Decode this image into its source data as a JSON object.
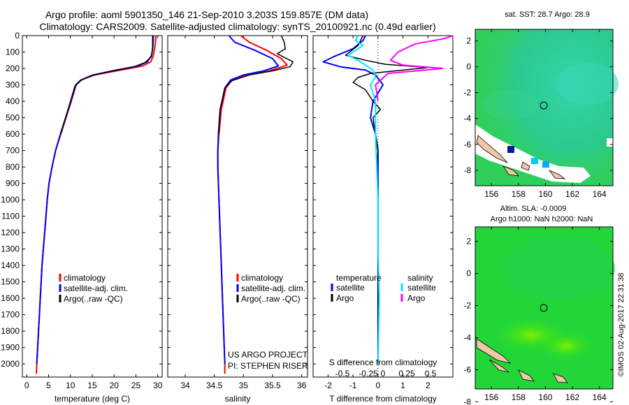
{
  "header": {
    "line1": "Argo profile: aoml 5901350_146 21-Sep-2010 3.203S 159.857E (DM data)",
    "line2": "Climatology: CARS2009. Satellite-adjusted climatology: synTS_20100921.nc (0.49d earlier)"
  },
  "side_stamp": "©IMOS 02-Aug-2017 22:31:38",
  "colors": {
    "climatology": "#ff0000",
    "satellite": "#0000ff",
    "argo": "#000000",
    "sal_satellite": "#00e5ff",
    "sal_argo": "#ff00ff"
  },
  "chart_data": [
    {
      "type": "line",
      "id": "temperature",
      "xlabel": "temperature (deg C)",
      "xlim": [
        -1,
        31
      ],
      "ylim": [
        0,
        2080
      ],
      "xticks": [
        0,
        5,
        10,
        15,
        20,
        25,
        30
      ],
      "yticks": [
        0,
        100,
        200,
        300,
        400,
        500,
        600,
        700,
        800,
        900,
        1000,
        1100,
        1200,
        1300,
        1400,
        1500,
        1600,
        1700,
        1800,
        1900,
        2000
      ],
      "legend": [
        "climatology",
        "satellite-adj. clim.",
        "Argo(..raw -QC)"
      ],
      "series": [
        {
          "name": "climatology",
          "color": "#ff0000",
          "width": 2,
          "points": [
            [
              29.6,
              0
            ],
            [
              29.4,
              60
            ],
            [
              29.0,
              120
            ],
            [
              28.4,
              160
            ],
            [
              26.5,
              185
            ],
            [
              21.5,
              210
            ],
            [
              15.5,
              240
            ],
            [
              12.5,
              270
            ],
            [
              11.3,
              300
            ],
            [
              10.2,
              400
            ],
            [
              9.0,
              500
            ],
            [
              7.8,
              600
            ],
            [
              6.6,
              700
            ],
            [
              5.8,
              800
            ],
            [
              5.1,
              900
            ],
            [
              4.7,
              1000
            ],
            [
              4.4,
              1100
            ],
            [
              4.1,
              1200
            ],
            [
              3.8,
              1300
            ],
            [
              3.5,
              1400
            ],
            [
              3.3,
              1500
            ],
            [
              3.1,
              1600
            ],
            [
              2.9,
              1700
            ],
            [
              2.7,
              1800
            ],
            [
              2.5,
              1900
            ],
            [
              2.3,
              2000
            ],
            [
              2.2,
              2060
            ]
          ]
        },
        {
          "name": "satellite",
          "color": "#0000ff",
          "width": 2,
          "points": [
            [
              29.0,
              0
            ],
            [
              28.9,
              60
            ],
            [
              28.6,
              120
            ],
            [
              27.6,
              160
            ],
            [
              25.5,
              185
            ],
            [
              20.5,
              210
            ],
            [
              15.2,
              240
            ],
            [
              12.4,
              270
            ],
            [
              11.2,
              300
            ],
            [
              10.1,
              400
            ],
            [
              8.9,
              500
            ],
            [
              7.7,
              600
            ],
            [
              6.6,
              700
            ],
            [
              5.8,
              800
            ],
            [
              5.1,
              900
            ],
            [
              4.7,
              1000
            ],
            [
              4.4,
              1100
            ],
            [
              4.1,
              1200
            ],
            [
              3.8,
              1300
            ],
            [
              3.5,
              1400
            ],
            [
              3.3,
              1500
            ],
            [
              3.1,
              1600
            ],
            [
              2.9,
              1700
            ],
            [
              2.7,
              1800
            ],
            [
              2.5,
              1900
            ],
            [
              2.3,
              2000
            ]
          ]
        },
        {
          "name": "argo",
          "color": "#000000",
          "width": 1.5,
          "points": [
            [
              28.8,
              0
            ],
            [
              28.8,
              80
            ],
            [
              28.5,
              130
            ],
            [
              27.0,
              165
            ],
            [
              24.5,
              190
            ],
            [
              19.5,
              215
            ],
            [
              14.5,
              245
            ],
            [
              12.3,
              275
            ],
            [
              11.0,
              310
            ],
            [
              10.0,
              400
            ],
            [
              8.9,
              500
            ],
            [
              7.8,
              600
            ]
          ]
        }
      ]
    },
    {
      "type": "line",
      "id": "salinity",
      "xlabel": "salinity",
      "xlim": [
        33.7,
        36.1
      ],
      "ylim": [
        0,
        2080
      ],
      "xticks": [
        34,
        34.5,
        35,
        35.5,
        36
      ],
      "xticklabels": [
        "34",
        "34.5",
        "35",
        "35.5",
        "36"
      ],
      "legend": [
        "climatology",
        "satellite-adj. clim.",
        "Argo(..raw -QC)"
      ],
      "annotation": [
        "US ARGO PROJECT",
        "PI: STEPHEN RISER"
      ],
      "series": [
        {
          "name": "climatology",
          "color": "#ff0000",
          "width": 2,
          "points": [
            [
              34.95,
              0
            ],
            [
              35.1,
              40
            ],
            [
              35.4,
              90
            ],
            [
              35.65,
              140
            ],
            [
              35.75,
              180
            ],
            [
              35.45,
              215
            ],
            [
              35.05,
              240
            ],
            [
              34.8,
              270
            ],
            [
              34.7,
              320
            ],
            [
              34.62,
              450
            ],
            [
              34.58,
              600
            ],
            [
              34.56,
              700
            ],
            [
              34.56,
              800
            ],
            [
              34.57,
              900
            ],
            [
              34.58,
              1000
            ],
            [
              34.6,
              1200
            ],
            [
              34.62,
              1400
            ],
            [
              34.64,
              1600
            ],
            [
              34.66,
              1800
            ],
            [
              34.68,
              2000
            ],
            [
              34.68,
              2060
            ]
          ]
        },
        {
          "name": "satellite",
          "color": "#0000ff",
          "width": 2,
          "points": [
            [
              34.75,
              0
            ],
            [
              34.85,
              40
            ],
            [
              35.2,
              90
            ],
            [
              35.5,
              140
            ],
            [
              35.6,
              185
            ],
            [
              35.35,
              215
            ],
            [
              35.0,
              240
            ],
            [
              34.78,
              270
            ],
            [
              34.68,
              320
            ],
            [
              34.6,
              450
            ],
            [
              34.57,
              600
            ],
            [
              34.56,
              700
            ],
            [
              34.56,
              800
            ],
            [
              34.57,
              900
            ],
            [
              34.58,
              1000
            ],
            [
              34.6,
              1200
            ],
            [
              34.62,
              1400
            ],
            [
              34.64,
              1600
            ],
            [
              34.66,
              1800
            ],
            [
              34.68,
              2000
            ]
          ]
        },
        {
          "name": "argo",
          "color": "#000000",
          "width": 1.5,
          "points": [
            [
              35.65,
              0
            ],
            [
              35.7,
              40
            ],
            [
              35.72,
              80
            ],
            [
              35.58,
              110
            ],
            [
              35.85,
              160
            ],
            [
              35.8,
              190
            ],
            [
              35.5,
              215
            ],
            [
              35.1,
              240
            ],
            [
              34.8,
              275
            ],
            [
              34.68,
              320
            ],
            [
              34.6,
              450
            ],
            [
              34.57,
              600
            ]
          ]
        }
      ]
    },
    {
      "type": "line",
      "id": "difference",
      "xlabel": "T difference from climatology",
      "xlabel_secondary": "S difference from climatology",
      "xlim": [
        -2.6,
        3.0
      ],
      "ylim": [
        0,
        2080
      ],
      "xticks": [
        -2,
        -1,
        0,
        1,
        2
      ],
      "secondary_ticks": [
        "-0.5",
        "-0.25",
        "0",
        "0.25",
        "0.5"
      ],
      "legend_headers": [
        "temperature",
        "salinity"
      ],
      "legend_left": [
        "satellite",
        "Argo"
      ],
      "legend_right": [
        "satellite",
        "Argo"
      ],
      "series": [
        {
          "name": "T satellite",
          "color": "#0000ff",
          "width": 2,
          "points": [
            [
              -0.5,
              0
            ],
            [
              -0.6,
              30
            ],
            [
              -1.0,
              80
            ],
            [
              -1.8,
              130
            ],
            [
              -2.2,
              160
            ],
            [
              -1.5,
              190
            ],
            [
              -0.5,
              210
            ],
            [
              -0.1,
              240
            ],
            [
              0.2,
              300
            ],
            [
              -0.2,
              400
            ],
            [
              -0.3,
              500
            ],
            [
              -0.1,
              600
            ],
            [
              0.0,
              700
            ],
            [
              0.0,
              900
            ],
            [
              0.0,
              1200
            ],
            [
              0.0,
              2000
            ]
          ]
        },
        {
          "name": "T argo",
          "color": "#000000",
          "width": 1.5,
          "points": [
            [
              -0.6,
              0
            ],
            [
              -0.8,
              60
            ],
            [
              -1.3,
              120
            ],
            [
              -0.5,
              150
            ],
            [
              0.3,
              175
            ],
            [
              2.0,
              195
            ],
            [
              1.0,
              210
            ],
            [
              -0.3,
              230
            ],
            [
              -0.8,
              255
            ],
            [
              -1.0,
              285
            ],
            [
              -0.5,
              330
            ],
            [
              -0.2,
              400
            ],
            [
              0.1,
              450
            ],
            [
              -0.2,
              500
            ],
            [
              -0.1,
              600
            ],
            [
              0.0,
              700
            ],
            [
              -0.05,
              800
            ],
            [
              0.0,
              900
            ],
            [
              0.0,
              2000
            ]
          ]
        },
        {
          "name": "S satellite",
          "color": "#00e5ff",
          "width": 2,
          "points": [
            [
              -0.8,
              0
            ],
            [
              -0.9,
              30
            ],
            [
              -0.6,
              60
            ],
            [
              -1.2,
              120
            ],
            [
              -0.8,
              150
            ],
            [
              -0.5,
              180
            ],
            [
              -0.2,
              210
            ],
            [
              -0.1,
              250
            ],
            [
              -0.3,
              300
            ],
            [
              -0.1,
              400
            ],
            [
              -0.1,
              600
            ],
            [
              -0.05,
              800
            ],
            [
              0.0,
              1000
            ],
            [
              0.0,
              1300
            ],
            [
              0.05,
              1600
            ],
            [
              0.0,
              2000
            ]
          ]
        },
        {
          "name": "S argo",
          "color": "#ff00ff",
          "width": 2,
          "points": [
            [
              3.0,
              0
            ],
            [
              2.6,
              20
            ],
            [
              1.5,
              50
            ],
            [
              0.8,
              100
            ],
            [
              0.5,
              150
            ],
            [
              1.0,
              180
            ],
            [
              2.6,
              200
            ],
            [
              0.4,
              230
            ],
            [
              -0.1,
              300
            ],
            [
              0.0,
              400
            ]
          ]
        }
      ]
    }
  ],
  "maps": [
    {
      "id": "sst_map",
      "title": "sat. SST: 28.7  Argo: 28.9",
      "xticks": [
        156,
        158,
        160,
        162,
        164
      ],
      "yticks": [
        2,
        0,
        -2,
        -4,
        -6,
        -8
      ]
    },
    {
      "id": "sla_map",
      "title_line1": "Altim. SLA: -0.0009",
      "title_line2": "Argo h1000: NaN h2000: NaN",
      "xticks": [
        156,
        158,
        160,
        162,
        164
      ],
      "yticks": [
        2,
        0,
        -2,
        -4,
        -6,
        -8
      ]
    }
  ]
}
